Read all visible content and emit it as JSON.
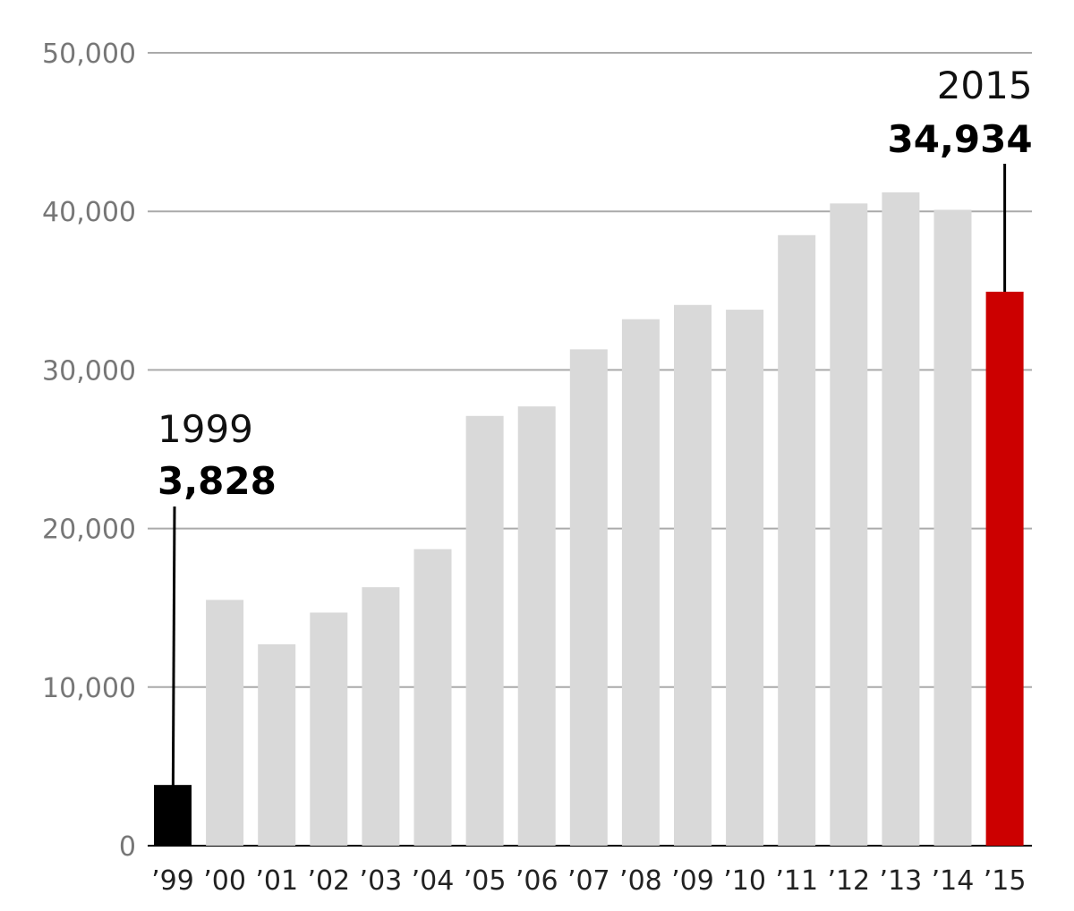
{
  "chart_data": {
    "type": "bar",
    "title": "",
    "xlabel": "",
    "ylabel": "",
    "ylim": [
      0,
      50000
    ],
    "yticks": [
      0,
      10000,
      20000,
      30000,
      40000,
      50000
    ],
    "ytick_labels": [
      "0",
      "10,000",
      "20,000",
      "30,000",
      "40,000",
      "50,000"
    ],
    "grid": true,
    "categories": [
      "’99",
      "’00",
      "’01",
      "’02",
      "’03",
      "’04",
      "’05",
      "’06",
      "’07",
      "’08",
      "’09",
      "’10",
      "’11",
      "’12",
      "’13",
      "’14",
      "’15"
    ],
    "values": [
      3828,
      15500,
      12700,
      14700,
      16300,
      18700,
      27100,
      27700,
      31300,
      33200,
      34100,
      33800,
      38500,
      40500,
      41200,
      40100,
      34934
    ],
    "bar_colors": [
      "#000000",
      "#d9d9d9",
      "#d9d9d9",
      "#d9d9d9",
      "#d9d9d9",
      "#d9d9d9",
      "#d9d9d9",
      "#d9d9d9",
      "#d9d9d9",
      "#d9d9d9",
      "#d9d9d9",
      "#d9d9d9",
      "#d9d9d9",
      "#d9d9d9",
      "#d9d9d9",
      "#d9d9d9",
      "#cc0000"
    ],
    "annotations": [
      {
        "index": 0,
        "year": "1999",
        "value": "3,828"
      },
      {
        "index": 16,
        "year": "2015",
        "value": "34,934"
      }
    ]
  },
  "colors": {
    "gridline": "#aaaaaa",
    "axis": "#000000",
    "tick_label": "#777777",
    "category_label": "#222222",
    "default_bar": "#d9d9d9",
    "first_bar": "#000000",
    "highlight_bar": "#cc0000"
  }
}
